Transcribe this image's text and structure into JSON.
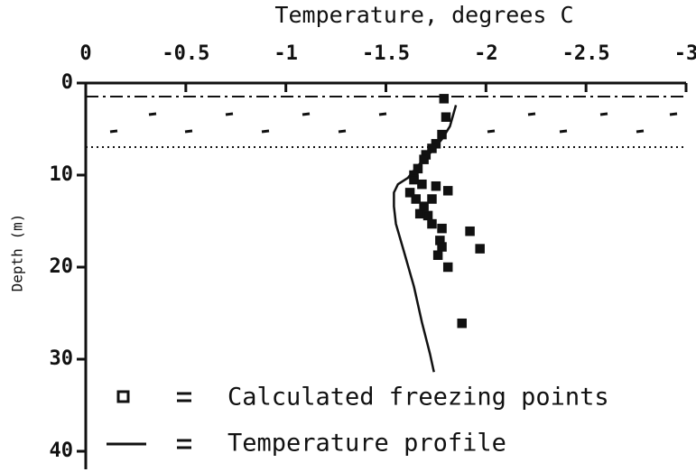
{
  "chart_data": {
    "type": "scatter",
    "title": "Temperature, degrees C",
    "y_label": "Depth (m)",
    "xlim": [
      0,
      -3
    ],
    "xticks": [
      0,
      -0.5,
      -1,
      -1.5,
      -2,
      -2.5,
      -3
    ],
    "ylim": [
      0,
      40
    ],
    "yticks": [
      0,
      10,
      20,
      30,
      40
    ],
    "y_inverted": true,
    "series": [
      {
        "name": "Calculated freezing points",
        "type": "scatter",
        "color": "#111111",
        "x": [
          -1.79,
          -1.8,
          -1.78,
          -1.75,
          -1.73,
          -1.7,
          -1.69,
          -1.66,
          -1.64,
          -1.64,
          -1.68,
          -1.75,
          -1.81,
          -1.62,
          -1.65,
          -1.73,
          -1.69,
          -1.67,
          -1.71,
          -1.73,
          -1.78,
          -1.77,
          -1.78,
          -1.76,
          -1.81,
          -1.92,
          -1.97,
          -1.88
        ],
        "values": [
          1.7,
          3.7,
          5.6,
          6.6,
          7.1,
          7.8,
          8.3,
          9.3,
          10.0,
          10.5,
          11.0,
          11.2,
          11.7,
          11.9,
          12.6,
          12.6,
          13.4,
          14.2,
          14.4,
          15.3,
          15.8,
          17.1,
          17.8,
          18.7,
          20.0,
          16.1,
          18.0,
          26.1
        ]
      },
      {
        "name": "Temperature profile",
        "type": "line",
        "color": "#111111",
        "x": [
          -1.85,
          -1.82,
          -1.78,
          -1.73,
          -1.68,
          -1.64,
          -1.61,
          -1.56,
          -1.54,
          -1.54,
          -1.55,
          -1.59,
          -1.64,
          -1.68,
          -1.72,
          -1.74
        ],
        "values": [
          2.4,
          4.7,
          6.1,
          7.4,
          8.5,
          9.5,
          10.3,
          11.0,
          11.9,
          13.4,
          15.3,
          18.3,
          22.1,
          26.0,
          29.4,
          31.4
        ]
      }
    ]
  }
}
